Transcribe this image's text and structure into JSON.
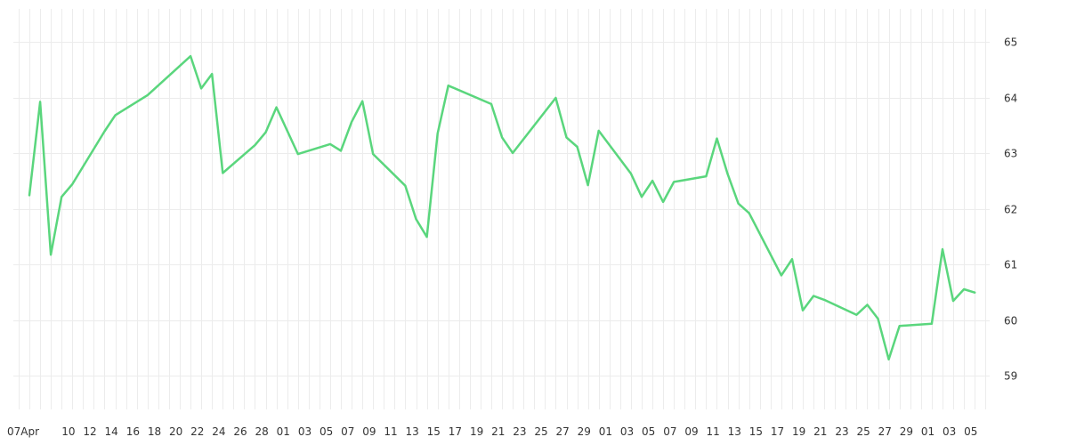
{
  "chart_data": {
    "type": "line",
    "title": "",
    "xlabel": "",
    "ylabel": "",
    "grid": true,
    "y_axis_side": "right",
    "ylim": [
      58.4,
      65.6
    ],
    "yticks": [
      59,
      60,
      61,
      62,
      63,
      64,
      65
    ],
    "x_tick_labels": [
      "07Apr",
      "10",
      "12",
      "14",
      "16",
      "18",
      "20",
      "22",
      "24",
      "26",
      "28",
      "01",
      "03",
      "05",
      "07",
      "09",
      "11",
      "13",
      "15",
      "17",
      "19",
      "21",
      "23",
      "25",
      "27",
      "29",
      "01",
      "03",
      "05",
      "07",
      "09",
      "11",
      "13",
      "15",
      "17",
      "19",
      "21",
      "23",
      "25",
      "27",
      "29",
      "01",
      "03",
      "05"
    ],
    "series": [
      {
        "color": "#5ad67d",
        "x": [
          "2017-04-07",
          "2017-04-08",
          "2017-04-09",
          "2017-04-10",
          "2017-04-11",
          "2017-04-14",
          "2017-04-15",
          "2017-04-18",
          "2017-04-22",
          "2017-04-23",
          "2017-04-24",
          "2017-04-25",
          "2017-04-28",
          "2017-04-29",
          "2017-04-30",
          "2017-05-02",
          "2017-05-05",
          "2017-05-06",
          "2017-05-07",
          "2017-05-08",
          "2017-05-09",
          "2017-05-12",
          "2017-05-13",
          "2017-05-14",
          "2017-05-15",
          "2017-05-16",
          "2017-05-20",
          "2017-05-21",
          "2017-05-22",
          "2017-05-26",
          "2017-05-27",
          "2017-05-28",
          "2017-05-29",
          "2017-05-30",
          "2017-06-02",
          "2017-06-03",
          "2017-06-04",
          "2017-06-05",
          "2017-06-06",
          "2017-06-09",
          "2017-06-10",
          "2017-06-11",
          "2017-06-12",
          "2017-06-13",
          "2017-06-16",
          "2017-06-17",
          "2017-06-18",
          "2017-06-19",
          "2017-06-20",
          "2017-06-23",
          "2017-06-24",
          "2017-06-25",
          "2017-06-26",
          "2017-06-27",
          "2017-06-30",
          "2017-07-01",
          "2017-07-02",
          "2017-07-03",
          "2017-07-04"
        ],
        "values": [
          62.25,
          63.93,
          61.18,
          62.22,
          62.45,
          63.4,
          63.69,
          64.05,
          64.75,
          64.17,
          64.43,
          62.65,
          63.15,
          63.38,
          63.83,
          62.99,
          63.17,
          63.05,
          63.57,
          63.94,
          62.99,
          62.42,
          61.82,
          61.5,
          63.36,
          64.22,
          63.89,
          63.29,
          63.01,
          64.0,
          63.29,
          63.12,
          62.43,
          63.41,
          62.64,
          62.22,
          62.51,
          62.13,
          62.49,
          62.59,
          63.27,
          62.63,
          62.1,
          61.93,
          60.81,
          61.1,
          60.18,
          60.44,
          60.37,
          60.1,
          60.28,
          60.03,
          59.3,
          59.9,
          59.94,
          61.28,
          60.35,
          60.56,
          60.5
        ]
      }
    ]
  }
}
